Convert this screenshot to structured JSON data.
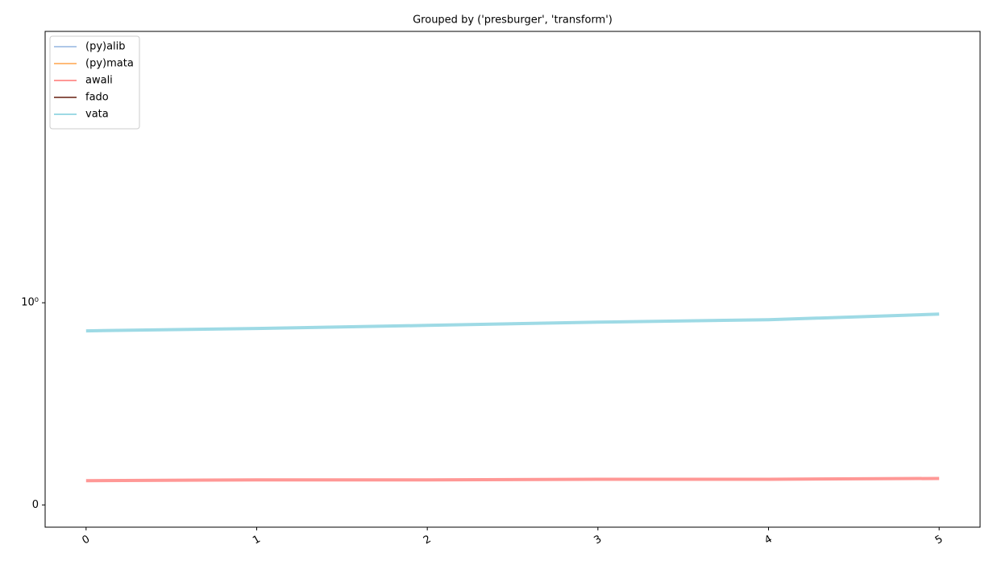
{
  "chart_data": {
    "type": "line",
    "title": "Grouped by ('presburger', 'transform')",
    "x": [
      0,
      1,
      2,
      3,
      4,
      5
    ],
    "xlim": [
      -0.24,
      5.24
    ],
    "xticks": [
      0,
      1,
      2,
      3,
      4,
      5
    ],
    "yscale": "symlog",
    "linthresh": 1,
    "ylim": [
      -0.11,
      31
    ],
    "yticks": [
      0,
      {
        "value": 1,
        "label": "10⁰"
      }
    ],
    "legend": "upper left",
    "series": [
      {
        "name": "(py)alib",
        "color": "#aec7e8",
        "values": [
          null,
          null,
          null,
          null,
          null,
          null
        ]
      },
      {
        "name": "(py)mata",
        "color": "#ffbb78",
        "values": [
          null,
          null,
          null,
          null,
          null,
          null
        ]
      },
      {
        "name": "awali",
        "color": "#ff9896",
        "values": [
          0.12,
          0.124,
          0.124,
          0.127,
          0.127,
          0.131
        ]
      },
      {
        "name": "fado",
        "color": "#8c564b",
        "values": [
          null,
          null,
          null,
          null,
          null,
          null
        ]
      },
      {
        "name": "vata",
        "color": "#9edae5",
        "values": [
          0.861,
          0.873,
          0.888,
          0.904,
          0.916,
          0.944
        ]
      }
    ]
  }
}
